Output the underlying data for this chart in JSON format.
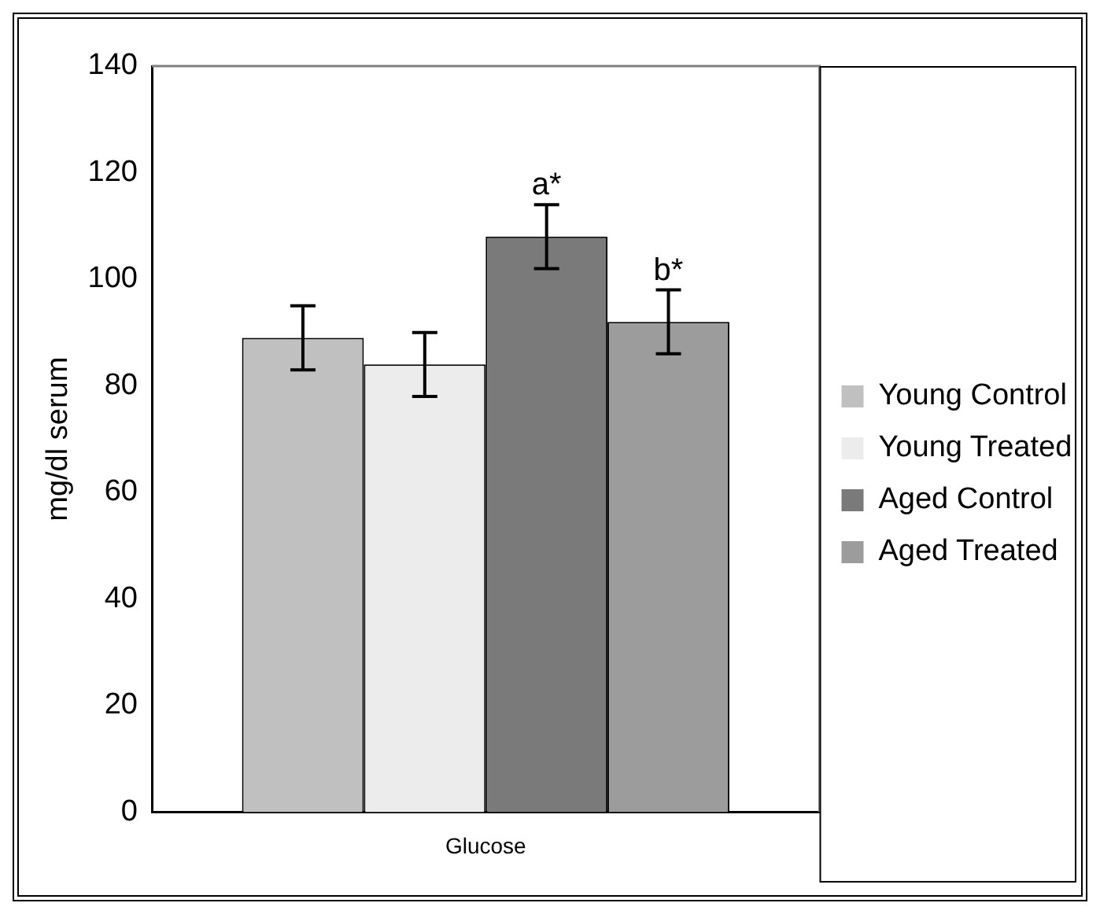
{
  "chart_data": {
    "type": "bar",
    "ylabel": "mg/dl serum",
    "categories": [
      "Glucose"
    ],
    "series": [
      {
        "name": "Young Control",
        "color": "#c0c0c0",
        "values": [
          89
        ],
        "errors": [
          6
        ]
      },
      {
        "name": "Young Treated",
        "color": "#ececec",
        "values": [
          84
        ],
        "errors": [
          6
        ]
      },
      {
        "name": "Aged Control",
        "color": "#7a7a7a",
        "values": [
          108
        ],
        "errors": [
          6
        ],
        "value_labels": [
          "a*"
        ]
      },
      {
        "name": "Aged Treated",
        "color": "#9c9c9c",
        "values": [
          92
        ],
        "errors": [
          6
        ],
        "value_labels": [
          "b*"
        ]
      }
    ],
    "ylim": [
      0,
      140
    ],
    "yticks": [
      0,
      20,
      40,
      60,
      80,
      100,
      120,
      140
    ],
    "grid": false,
    "legend": "right"
  }
}
